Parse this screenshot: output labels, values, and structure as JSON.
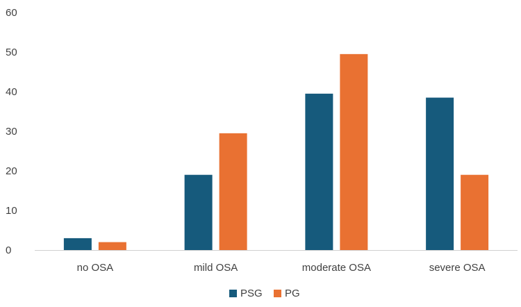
{
  "chart_data": {
    "type": "bar",
    "categories": [
      "no OSA",
      "mild OSA",
      "moderate OSA",
      "severe OSA"
    ],
    "series": [
      {
        "name": "PSG",
        "color": "#165A7C",
        "values": [
          3,
          19,
          39.5,
          38.5
        ]
      },
      {
        "name": "PG",
        "color": "#E97132",
        "values": [
          2,
          29.5,
          49.5,
          19
        ]
      }
    ],
    "title": "",
    "xlabel": "",
    "ylabel": "",
    "ylim": [
      0,
      60
    ],
    "yticks": [
      0,
      10,
      20,
      30,
      40,
      50,
      60
    ],
    "grid": false,
    "legend_position": "bottom"
  }
}
